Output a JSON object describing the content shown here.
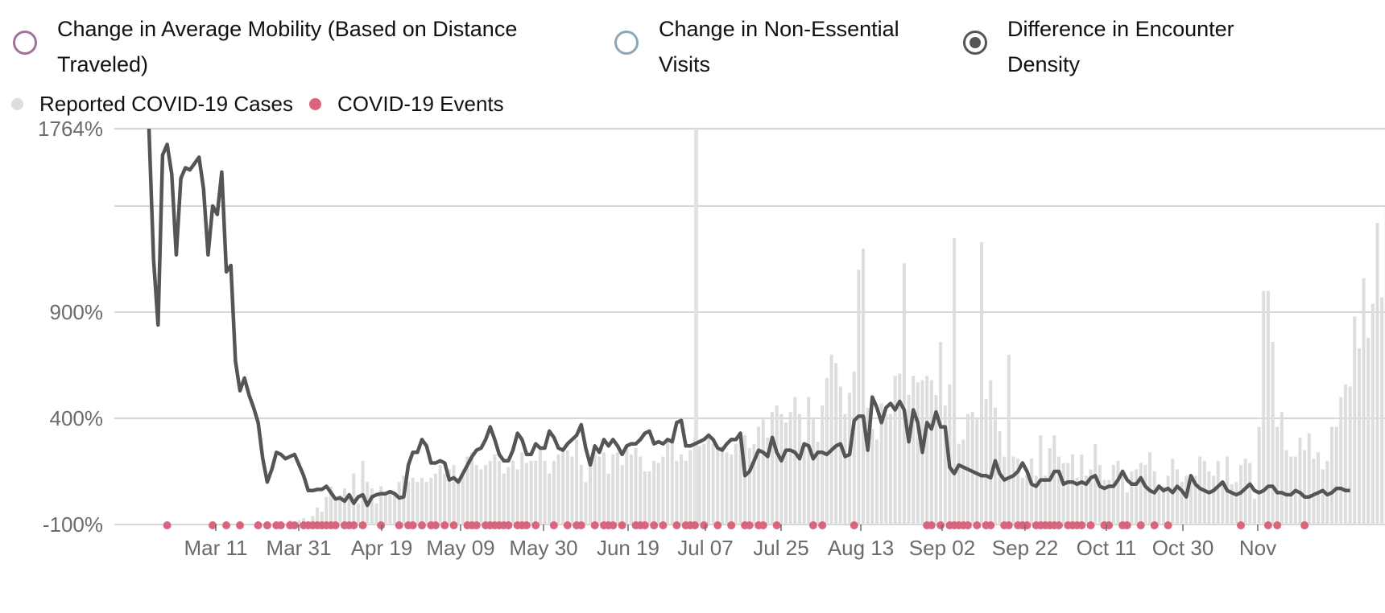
{
  "radio_options": [
    {
      "label_line1": "Change in Average Mobility (Based on Distance",
      "label_line2": "Traveled)",
      "color": "#a0729c",
      "selected": false
    },
    {
      "label_line1": "Change in Non-Essential",
      "label_line2": "Visits",
      "color": "#89a7b8",
      "selected": false
    },
    {
      "label_line1": "Difference in Encounter",
      "label_line2": "Density",
      "color": "#555555",
      "selected": true
    }
  ],
  "series_legend": [
    {
      "label": "Reported COVID-19 Cases",
      "color": "#dddddd"
    },
    {
      "label": "COVID-19 Events",
      "color": "#d9657d"
    }
  ],
  "chart_data": {
    "type": "line",
    "start_date": "2020-02-24",
    "x_tick_labels": [
      "Mar 11",
      "Mar 31",
      "Apr 19",
      "May 09",
      "May 30",
      "Jun 19",
      "Jul 07",
      "Jul 25",
      "Aug 13",
      "Sep 02",
      "Sep 22",
      "Oct 11",
      "Oct 30",
      "Nov"
    ],
    "y_tick_labels": [
      "-100%",
      "400%",
      "900%",
      "1764%"
    ],
    "y_gridlines": [
      -100,
      400,
      900,
      1400,
      1764
    ],
    "ylim": [
      -100,
      1764
    ],
    "encounter_density": {
      "name": "Difference in Encounter Density",
      "color": "#555555",
      "values": [
        1764,
        1150,
        840,
        1640,
        1690,
        1550,
        1170,
        1530,
        1580,
        1570,
        1600,
        1630,
        1480,
        1170,
        1400,
        1360,
        1560,
        1090,
        1120,
        670,
        530,
        590,
        510,
        450,
        380,
        210,
        100,
        160,
        240,
        230,
        210,
        220,
        230,
        180,
        130,
        60,
        60,
        65,
        65,
        80,
        50,
        20,
        25,
        10,
        40,
        0,
        30,
        40,
        -10,
        30,
        40,
        45,
        45,
        55,
        45,
        25,
        30,
        180,
        240,
        240,
        300,
        270,
        190,
        190,
        200,
        190,
        110,
        120,
        100,
        140,
        180,
        220,
        250,
        260,
        300,
        360,
        300,
        230,
        200,
        200,
        250,
        330,
        300,
        230,
        230,
        280,
        260,
        260,
        340,
        310,
        260,
        250,
        280,
        300,
        320,
        370,
        260,
        180,
        270,
        240,
        300,
        270,
        300,
        270,
        230,
        270,
        280,
        280,
        300,
        330,
        340,
        280,
        290,
        280,
        300,
        290,
        380,
        390,
        270,
        270,
        280,
        290,
        300,
        320,
        300,
        260,
        250,
        280,
        300,
        300,
        330,
        130,
        150,
        200,
        250,
        240,
        220,
        310,
        240,
        200,
        250,
        250,
        240,
        210,
        280,
        270,
        210,
        240,
        240,
        230,
        250,
        270,
        280,
        220,
        230,
        390,
        410,
        410,
        250,
        500,
        450,
        380,
        450,
        470,
        440,
        480,
        440,
        290,
        440,
        380,
        240,
        380,
        350,
        430,
        360,
        360,
        170,
        140,
        180,
        170,
        160,
        150,
        140,
        130,
        130,
        120,
        200,
        140,
        110,
        120,
        130,
        150,
        190,
        150,
        90,
        80,
        110,
        110,
        110,
        150,
        150,
        90,
        100,
        100,
        90,
        100,
        90,
        120,
        130,
        80,
        70,
        80,
        80,
        110,
        150,
        110,
        90,
        90,
        120,
        80,
        60,
        50,
        80,
        60,
        70,
        50,
        80,
        60,
        30,
        130,
        90,
        70,
        60,
        50,
        60,
        80,
        100,
        60,
        50,
        40,
        50,
        70,
        90,
        60,
        50,
        60,
        80,
        80,
        50,
        50,
        40,
        40,
        60,
        50,
        30,
        30,
        40,
        50,
        60,
        40,
        50,
        70,
        70,
        60,
        60
      ],
      "events_marked": true
    },
    "reported_cases": {
      "name": "Reported COVID-19 Cases",
      "color": "#dddddd",
      "values": [
        0,
        0,
        0,
        0,
        0,
        0,
        0,
        0,
        0,
        0,
        0,
        0,
        0,
        0,
        0,
        0,
        0,
        0,
        0,
        0,
        0,
        0,
        0,
        0,
        0,
        0,
        0,
        0,
        0,
        0,
        0,
        20,
        10,
        20,
        30,
        10,
        40,
        80,
        60,
        130,
        180,
        110,
        140,
        170,
        140,
        240,
        100,
        300,
        200,
        170,
        100,
        180,
        150,
        150,
        150,
        200,
        230,
        200,
        220,
        200,
        220,
        200,
        220,
        240,
        280,
        240,
        260,
        280,
        220,
        230,
        320,
        340,
        280,
        260,
        280,
        300,
        330,
        300,
        240,
        270,
        300,
        260,
        340,
        290,
        300,
        300,
        360,
        300,
        240,
        300,
        330,
        350,
        350,
        320,
        400,
        280,
        200,
        270,
        340,
        320,
        340,
        240,
        330,
        340,
        280,
        370,
        330,
        360,
        320,
        250,
        250,
        300,
        290,
        320,
        410,
        390,
        300,
        330,
        300,
        350,
        410,
        370,
        380,
        430,
        380,
        350,
        370,
        340,
        330,
        380,
        400,
        420,
        360,
        380,
        460,
        500,
        410,
        530,
        560,
        520,
        480,
        530,
        600,
        520,
        380,
        600,
        500,
        390,
        560,
        690,
        800,
        760,
        650,
        520,
        620,
        720,
        1200,
        1300,
        550,
        450,
        400,
        570,
        520,
        520,
        700,
        710,
        1230,
        610,
        700,
        670,
        680,
        700,
        680,
        610,
        860,
        560,
        660,
        1350,
        380,
        400,
        520,
        530,
        500,
        1330,
        590,
        680,
        550,
        440,
        320,
        800,
        320,
        310,
        220,
        230,
        310,
        230,
        420,
        230,
        360,
        420,
        320,
        290,
        290,
        330,
        220,
        330,
        230,
        260,
        380,
        280,
        210,
        210,
        280,
        300,
        260,
        150,
        250,
        260,
        290,
        280,
        340,
        250,
        190,
        180,
        230,
        310,
        260,
        200,
        230,
        200,
        230,
        320,
        300,
        250,
        230,
        300,
        190,
        320,
        190,
        200,
        280,
        310,
        290,
        120,
        460,
        1100,
        1100,
        860,
        460,
        530,
        350,
        320,
        320,
        410,
        350,
        430,
        310,
        340,
        260,
        300,
        460,
        460,
        600,
        660,
        650,
        980,
        830,
        1160,
        880,
        1040,
        1420,
        1070,
        1490,
        1440,
        1020,
        1000,
        1000,
        1000,
        1040,
        1100,
        970,
        1020,
        1040,
        1020,
        1100
      ],
      "peak": 1764
    },
    "events": {
      "name": "COVID-19 Events",
      "color": "#d9657d",
      "dates_index": [
        4,
        14,
        17,
        20,
        24,
        26,
        28,
        29,
        31,
        32,
        34,
        35,
        36,
        37,
        38,
        39,
        40,
        41,
        43,
        44,
        45,
        47,
        51,
        55,
        57,
        58,
        60,
        62,
        63,
        65,
        67,
        70,
        71,
        72,
        74,
        75,
        76,
        77,
        78,
        79,
        81,
        82,
        83,
        85,
        89,
        92,
        94,
        95,
        98,
        100,
        101,
        102,
        104,
        107,
        108,
        109,
        111,
        113,
        116,
        118,
        119,
        120,
        122,
        125,
        128,
        131,
        132,
        134,
        135,
        138,
        146,
        148,
        155,
        171,
        172,
        174,
        176,
        177,
        178,
        179,
        180,
        182,
        184,
        185,
        188,
        189,
        191,
        192,
        193,
        195,
        196,
        197,
        198,
        199,
        200,
        202,
        203,
        204,
        205,
        207,
        210,
        211,
        214,
        215,
        218,
        221,
        224,
        240,
        246,
        248,
        254
      ]
    }
  }
}
